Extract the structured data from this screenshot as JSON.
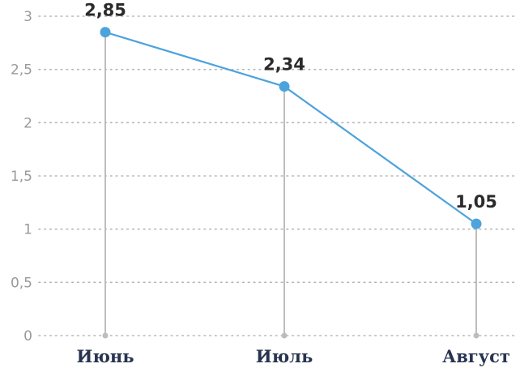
{
  "chart_data": {
    "type": "line",
    "categories": [
      "Июнь",
      "Июль",
      "Август"
    ],
    "series": [
      {
        "values": [
          2.85,
          2.34,
          1.05
        ],
        "data_labels": [
          "2,85",
          "2,34",
          "1,05"
        ],
        "color": "#4da3dc"
      }
    ],
    "y_ticks": [
      {
        "value": 3,
        "label": "3"
      },
      {
        "value": 2.5,
        "label": "2,5"
      },
      {
        "value": 2,
        "label": "2"
      },
      {
        "value": 1.5,
        "label": "1,5"
      },
      {
        "value": 1,
        "label": "1"
      },
      {
        "value": 0.5,
        "label": "0,5"
      },
      {
        "value": 0,
        "label": "0"
      }
    ],
    "ylim": [
      0,
      3
    ],
    "grid": true,
    "grid_style": "dotted",
    "title": "",
    "xlabel": "",
    "ylabel": "",
    "colors": {
      "line": "#4da3dc",
      "marker": "#4da3dc",
      "drop_line": "#bdbdbd",
      "grid": "#b5b5b5",
      "x_tick_text": "#27344f",
      "y_tick_text": "#9a9a9a",
      "data_label_text": "#2b2b2b"
    }
  }
}
